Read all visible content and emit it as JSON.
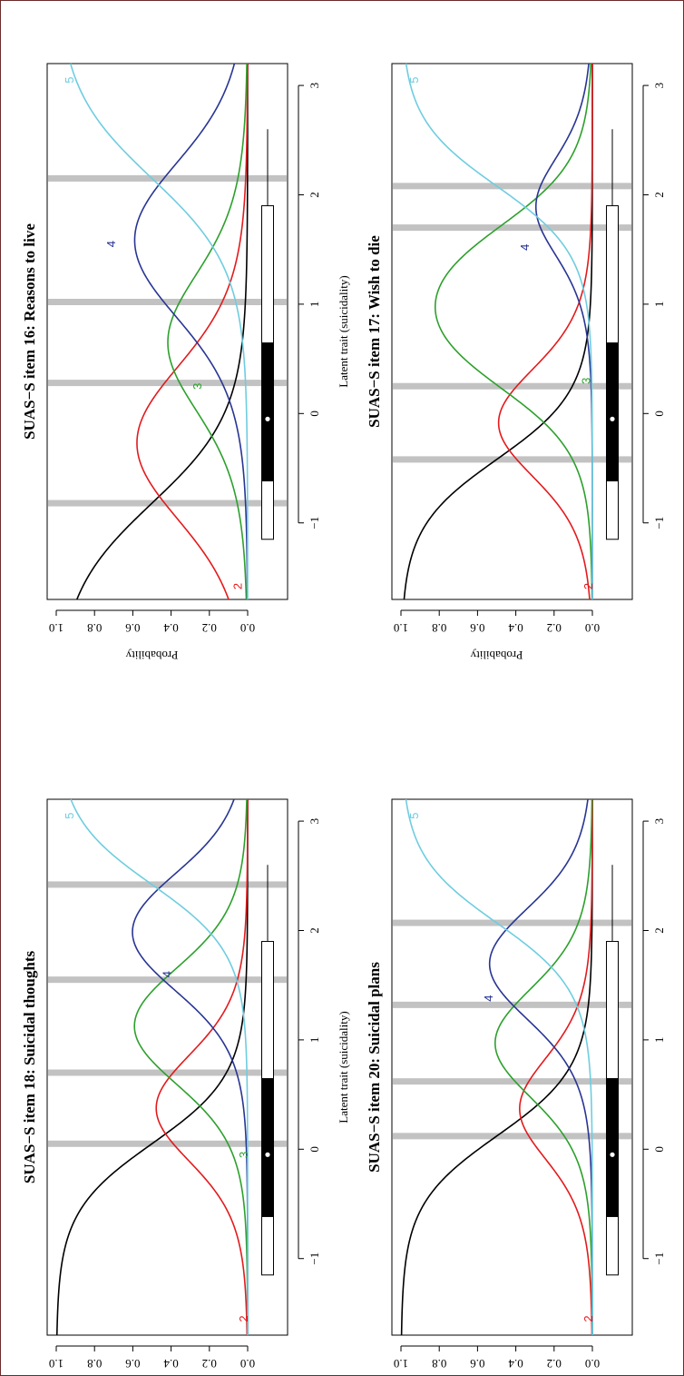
{
  "colors": {
    "cat1": "#000000",
    "cat2": "#e31a1c",
    "cat3": "#2ca02c",
    "cat4": "#283593",
    "cat5": "#6ecde0",
    "threshold": "#c2c2c2"
  },
  "chart_data": [
    {
      "type": "line",
      "title": "SUAS−S item  18: Suicidal thoughts",
      "xlabel": "Latent trait (suicidality)",
      "ylabel": "Probability",
      "xlim": [
        -1.7,
        3.2
      ],
      "ylim": [
        0,
        1
      ],
      "xticks": [
        "−1",
        "0",
        "1",
        "2",
        "3"
      ],
      "yticks": [
        "0.0",
        "0.2",
        "0.4",
        "0.6",
        "0.8",
        "1.0"
      ],
      "thresholds": [
        0.05,
        0.7,
        1.55,
        2.42
      ],
      "discrimination": 3.2,
      "curve_labels": [
        {
          "text": "2",
          "category": 2,
          "x": -1.55,
          "y": 0.02
        },
        {
          "text": "3",
          "category": 3,
          "x": -0.05,
          "y": 0.02
        },
        {
          "text": "4",
          "category": 4,
          "x": 1.6,
          "y": 0.42
        },
        {
          "text": "5",
          "category": 5,
          "x": 3.05,
          "y": 0.93
        }
      ],
      "boxplot": {
        "min": -1.15,
        "q1": -0.62,
        "median": -0.05,
        "q3": 0.65,
        "whisker_high": 1.9,
        "max": 2.6
      },
      "grid": false,
      "legend": "none"
    },
    {
      "type": "line",
      "title": "SUAS−S item  16: Reasons to live",
      "xlabel": "Latent trait (suicidality)",
      "ylabel": "Probability",
      "xlim": [
        -1.7,
        3.2
      ],
      "ylim": [
        0,
        1
      ],
      "xticks": [
        "−1",
        "0",
        "1",
        "2",
        "3"
      ],
      "yticks": [
        "0.0",
        "0.2",
        "0.4",
        "0.6",
        "0.8",
        "1.0"
      ],
      "thresholds": [
        -0.82,
        0.28,
        1.02,
        2.15
      ],
      "discrimination": 2.4,
      "curve_labels": [
        {
          "text": "2",
          "category": 2,
          "x": -1.58,
          "y": 0.05
        },
        {
          "text": "3",
          "category": 3,
          "x": 0.25,
          "y": 0.26
        },
        {
          "text": "4",
          "category": 4,
          "x": 1.55,
          "y": 0.71
        },
        {
          "text": "5",
          "category": 5,
          "x": 3.05,
          "y": 0.93
        }
      ],
      "boxplot": {
        "min": -1.15,
        "q1": -0.62,
        "median": -0.05,
        "q3": 0.65,
        "whisker_high": 1.9,
        "max": 2.6
      },
      "grid": false,
      "legend": "none"
    },
    {
      "type": "line",
      "title": "SUAS−S item  20: Suicidal plans",
      "xlabel": "Latent trait (suicidality)",
      "ylabel": "Probability",
      "xlim": [
        -1.7,
        3.2
      ],
      "ylim": [
        0,
        1
      ],
      "xticks": [
        "−1",
        "0",
        "1",
        "2",
        "3"
      ],
      "yticks": [
        "0.0",
        "0.2",
        "0.4",
        "0.6",
        "0.8",
        "1.0"
      ],
      "thresholds": [
        0.12,
        0.62,
        1.32,
        2.07
      ],
      "discrimination": 3.2,
      "curve_labels": [
        {
          "text": "2",
          "category": 2,
          "x": -1.55,
          "y": 0.02
        },
        {
          "text": "4",
          "category": 4,
          "x": 1.38,
          "y": 0.54
        },
        {
          "text": "5",
          "category": 5,
          "x": 3.05,
          "y": 0.93
        }
      ],
      "boxplot": {
        "min": -1.15,
        "q1": -0.62,
        "median": -0.05,
        "q3": 0.65,
        "whisker_high": 1.9,
        "max": 2.6
      },
      "grid": false,
      "legend": "none"
    },
    {
      "type": "line",
      "title": "SUAS−S item  17: Wish to die",
      "xlabel": "Latent trait (suicidality)",
      "ylabel": "Probability",
      "xlim": [
        -1.7,
        3.2
      ],
      "ylim": [
        0,
        1
      ],
      "xticks": [
        "−1",
        "0",
        "1",
        "2",
        "3"
      ],
      "yticks": [
        "0.0",
        "0.2",
        "0.4",
        "0.6",
        "0.8",
        "1.0"
      ],
      "thresholds": [
        -0.42,
        0.25,
        1.7,
        2.08
      ],
      "discrimination": 3.2,
      "curve_labels": [
        {
          "text": "2",
          "category": 2,
          "x": -1.58,
          "y": 0.02
        },
        {
          "text": "3",
          "category": 3,
          "x": 0.3,
          "y": 0.03
        },
        {
          "text": "4",
          "category": 4,
          "x": 1.52,
          "y": 0.35
        },
        {
          "text": "5",
          "category": 5,
          "x": 3.05,
          "y": 0.93
        }
      ],
      "boxplot": {
        "min": -1.15,
        "q1": -0.62,
        "median": -0.05,
        "q3": 0.65,
        "whisker_high": 1.9,
        "max": 2.6
      },
      "grid": false,
      "legend": "none"
    }
  ]
}
